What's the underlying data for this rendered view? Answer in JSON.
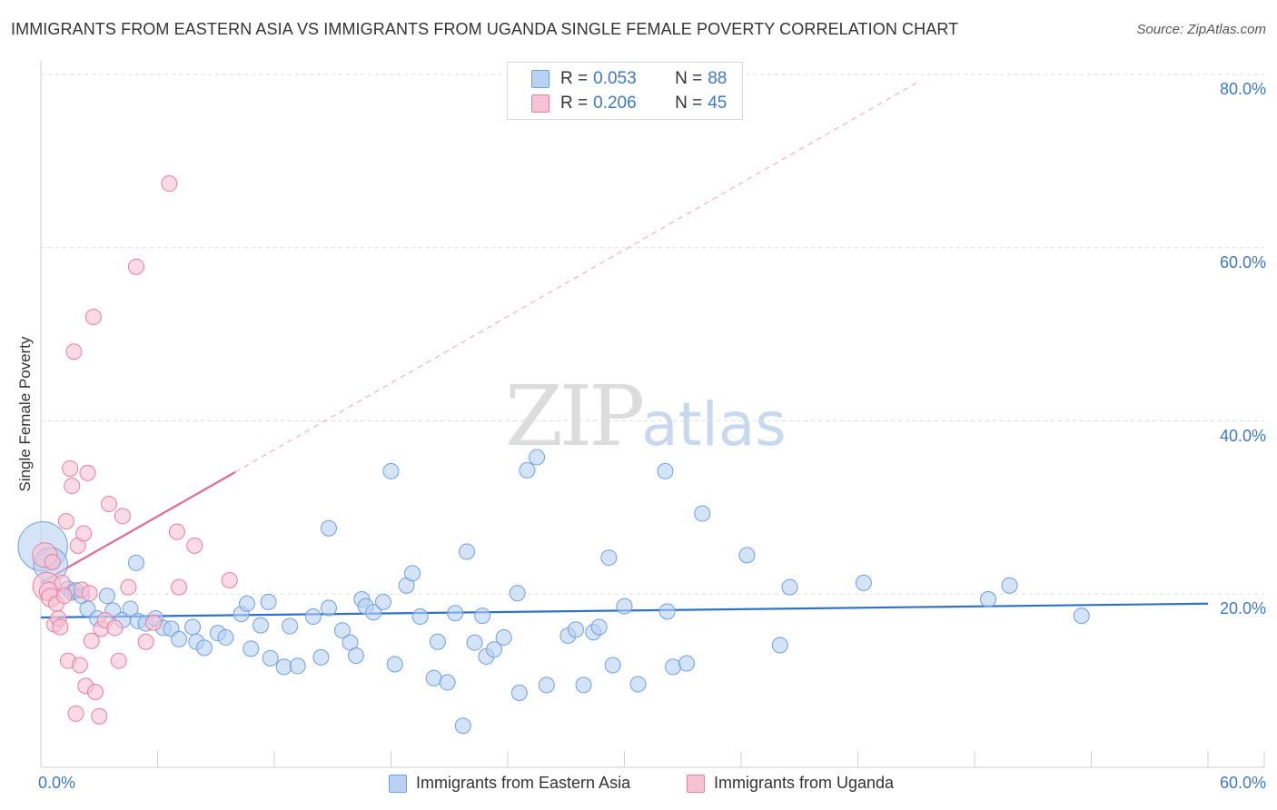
{
  "title": "IMMIGRANTS FROM EASTERN ASIA VS IMMIGRANTS FROM UGANDA SINGLE FEMALE POVERTY CORRELATION CHART",
  "source": "Source: ZipAtlas.com",
  "watermark": {
    "zip": "ZIP",
    "atlas": "atlas"
  },
  "colors": {
    "blue": "#6fa0e0",
    "blue_fill": "#b9d1f2",
    "blue_line": "#2f72cc",
    "pink": "#e77fa0",
    "pink_fill": "#f7c3d3",
    "pink_line": "#e06890",
    "tick_text": "#3d78c8"
  },
  "stats": [
    {
      "r_label": "R = ",
      "r_value": "0.053",
      "n_label": "N = ",
      "n_value": "88",
      "series": "blue"
    },
    {
      "r_label": "R = ",
      "r_value": "0.206",
      "n_label": "N = ",
      "n_value": "45",
      "series": "pink"
    }
  ],
  "legend": [
    {
      "label": "Immigrants from Eastern Asia",
      "series": "blue"
    },
    {
      "label": "Immigrants from Uganda",
      "series": "pink"
    }
  ],
  "chart_data": {
    "type": "scatter",
    "title": "IMMIGRANTS FROM EASTERN ASIA VS IMMIGRANTS FROM UGANDA SINGLE FEMALE POVERTY CORRELATION CHART",
    "xlabel": "",
    "ylabel": "Single Female Poverty",
    "xlim": [
      0,
      60
    ],
    "ylim": [
      0,
      80
    ],
    "y_ticks": [
      {
        "value": 20,
        "label": "20.0%"
      },
      {
        "value": 40,
        "label": "40.0%"
      },
      {
        "value": 60,
        "label": "60.0%"
      },
      {
        "value": 80,
        "label": "80.0%"
      }
    ],
    "x_tick_labels": [
      {
        "value": 0,
        "label": "0.0%"
      },
      {
        "value": 60,
        "label": "60.0%"
      }
    ],
    "x_minor_ticks": [
      6,
      12,
      18,
      24,
      30,
      36,
      42,
      48,
      54,
      60
    ],
    "grid": true,
    "series": [
      {
        "name": "Immigrants from Eastern Asia",
        "color": "blue",
        "trend": {
          "x": [
            0,
            60
          ],
          "y": [
            17.3,
            18.9
          ],
          "style": "solid"
        },
        "points": [
          [
            0.1,
            25.5,
            3.2
          ],
          [
            0.5,
            23.4,
            2.2
          ],
          [
            1.4,
            20.6,
            1
          ],
          [
            1.6,
            20.2,
            1
          ],
          [
            1.8,
            20.4,
            1
          ],
          [
            2.1,
            19.8,
            1
          ],
          [
            2.4,
            18.3,
            1
          ],
          [
            2.9,
            17.2,
            1
          ],
          [
            3.4,
            19.8,
            1
          ],
          [
            3.7,
            18.1,
            1
          ],
          [
            4.2,
            17.0,
            1
          ],
          [
            4.6,
            18.3,
            1
          ],
          [
            4.9,
            23.6,
            1
          ],
          [
            5.0,
            16.9,
            1
          ],
          [
            5.4,
            16.6,
            1
          ],
          [
            5.9,
            17.2,
            1
          ],
          [
            6.3,
            16.1,
            1
          ],
          [
            6.7,
            16.0,
            1
          ],
          [
            7.1,
            14.8,
            1
          ],
          [
            7.8,
            16.2,
            1
          ],
          [
            8.0,
            14.5,
            1
          ],
          [
            8.4,
            13.8,
            1
          ],
          [
            9.1,
            15.5,
            1
          ],
          [
            9.5,
            15.0,
            1
          ],
          [
            10.3,
            17.7,
            1
          ],
          [
            10.6,
            18.9,
            1
          ],
          [
            10.8,
            13.7,
            1
          ],
          [
            11.3,
            16.4,
            1
          ],
          [
            11.7,
            19.1,
            1
          ],
          [
            11.8,
            12.6,
            1
          ],
          [
            12.5,
            11.6,
            1
          ],
          [
            12.8,
            16.3,
            1
          ],
          [
            13.2,
            11.7,
            1
          ],
          [
            14.0,
            17.4,
            1
          ],
          [
            14.4,
            12.7,
            1
          ],
          [
            14.8,
            18.4,
            1
          ],
          [
            14.8,
            27.6,
            1
          ],
          [
            15.5,
            15.8,
            1
          ],
          [
            15.9,
            14.4,
            1
          ],
          [
            16.2,
            12.9,
            1
          ],
          [
            16.5,
            19.4,
            1
          ],
          [
            16.7,
            18.6,
            1
          ],
          [
            17.1,
            17.9,
            1
          ],
          [
            17.6,
            19.1,
            1
          ],
          [
            18.0,
            34.2,
            1
          ],
          [
            18.2,
            11.9,
            1
          ],
          [
            18.8,
            21.0,
            1
          ],
          [
            19.1,
            22.4,
            1
          ],
          [
            19.5,
            17.4,
            1
          ],
          [
            20.2,
            10.3,
            1
          ],
          [
            20.4,
            14.5,
            1
          ],
          [
            20.9,
            9.8,
            1
          ],
          [
            21.3,
            17.8,
            1
          ],
          [
            21.7,
            4.8,
            1
          ],
          [
            21.9,
            24.9,
            1
          ],
          [
            22.3,
            14.4,
            1
          ],
          [
            22.7,
            17.5,
            1
          ],
          [
            22.9,
            12.8,
            1
          ],
          [
            23.3,
            13.6,
            1
          ],
          [
            23.8,
            15.0,
            1
          ],
          [
            24.5,
            20.1,
            1
          ],
          [
            24.6,
            8.6,
            1
          ],
          [
            25.0,
            34.3,
            1
          ],
          [
            25.5,
            35.8,
            1
          ],
          [
            26.0,
            9.5,
            1
          ],
          [
            27.1,
            15.2,
            1
          ],
          [
            27.5,
            15.9,
            1
          ],
          [
            27.9,
            9.5,
            1
          ],
          [
            28.4,
            15.6,
            1
          ],
          [
            28.7,
            16.2,
            1
          ],
          [
            29.2,
            24.2,
            1
          ],
          [
            29.4,
            11.8,
            1
          ],
          [
            30.0,
            18.6,
            1
          ],
          [
            30.7,
            9.6,
            1
          ],
          [
            32.1,
            34.2,
            1
          ],
          [
            32.2,
            18.0,
            1
          ],
          [
            32.5,
            11.6,
            1
          ],
          [
            33.2,
            12.0,
            1
          ],
          [
            34.0,
            29.3,
            1
          ],
          [
            36.3,
            24.5,
            1
          ],
          [
            38.0,
            14.1,
            1
          ],
          [
            38.5,
            20.8,
            1
          ],
          [
            42.3,
            21.3,
            1
          ],
          [
            48.7,
            19.4,
            1
          ],
          [
            49.8,
            21.0,
            1
          ],
          [
            53.5,
            17.5,
            1
          ]
        ]
      },
      {
        "name": "Immigrants from Uganda",
        "color": "pink",
        "trend": {
          "x": [
            0,
            10
          ],
          "y": [
            21.3,
            34.1
          ],
          "style": "solid",
          "extrapolated": {
            "x": [
              10,
              45
            ],
            "y": [
              34.1,
              79.0
            ],
            "style": "dashed"
          }
        },
        "points": [
          [
            0.2,
            24.5,
            1.6
          ],
          [
            0.3,
            20.9,
            1.8
          ],
          [
            0.4,
            20.3,
            1.2
          ],
          [
            0.5,
            19.6,
            1.2
          ],
          [
            0.6,
            23.7,
            1
          ],
          [
            0.7,
            16.5,
            1
          ],
          [
            0.8,
            18.9,
            1
          ],
          [
            0.9,
            17.2,
            1
          ],
          [
            1.0,
            16.2,
            1
          ],
          [
            1.1,
            21.3,
            1
          ],
          [
            1.2,
            19.8,
            1
          ],
          [
            1.3,
            28.4,
            1
          ],
          [
            1.4,
            12.3,
            1
          ],
          [
            1.5,
            34.5,
            1
          ],
          [
            1.6,
            32.5,
            1
          ],
          [
            1.7,
            48.0,
            1
          ],
          [
            1.8,
            6.2,
            1
          ],
          [
            1.9,
            25.6,
            1
          ],
          [
            2.0,
            11.8,
            1
          ],
          [
            2.1,
            20.5,
            1
          ],
          [
            2.2,
            27.0,
            1
          ],
          [
            2.3,
            9.4,
            1
          ],
          [
            2.4,
            34.0,
            1
          ],
          [
            2.5,
            20.1,
            1
          ],
          [
            2.6,
            14.6,
            1
          ],
          [
            2.7,
            52.0,
            1
          ],
          [
            2.8,
            8.7,
            1
          ],
          [
            3.0,
            5.9,
            1
          ],
          [
            3.1,
            16.0,
            1
          ],
          [
            3.3,
            17.0,
            1
          ],
          [
            3.5,
            30.4,
            1
          ],
          [
            3.8,
            16.1,
            1
          ],
          [
            4.0,
            12.3,
            1
          ],
          [
            4.2,
            29.0,
            1
          ],
          [
            4.5,
            20.8,
            1
          ],
          [
            4.9,
            57.8,
            1
          ],
          [
            5.4,
            14.5,
            1
          ],
          [
            5.8,
            16.7,
            1
          ],
          [
            6.6,
            67.4,
            1
          ],
          [
            7.0,
            27.2,
            1
          ],
          [
            7.1,
            20.8,
            1
          ],
          [
            7.9,
            25.6,
            1
          ],
          [
            9.7,
            21.6,
            1
          ]
        ]
      }
    ]
  }
}
